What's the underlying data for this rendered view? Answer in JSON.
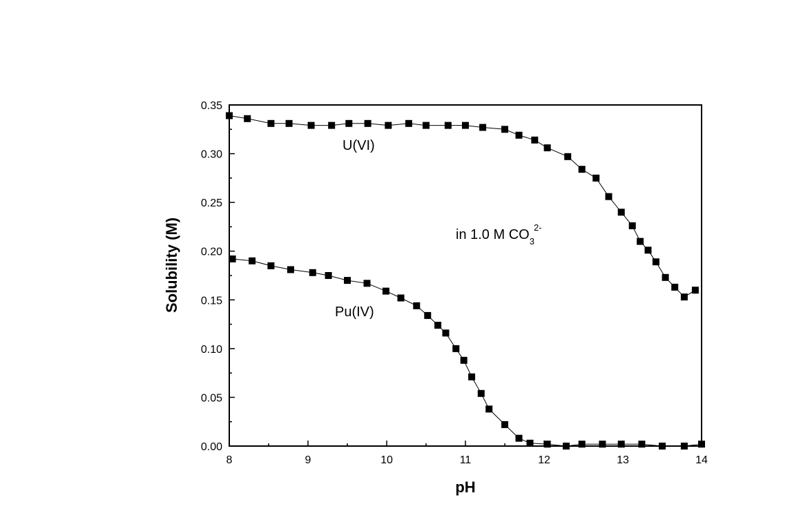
{
  "chart_data": {
    "type": "line",
    "title": "",
    "xlabel": "pH",
    "ylabel": "Solubility (M)",
    "xlim": [
      8,
      14
    ],
    "ylim": [
      0,
      0.35
    ],
    "grid": false,
    "x_ticks": [
      8,
      9,
      10,
      11,
      12,
      13,
      14
    ],
    "x_tick_labels": [
      "8",
      "9",
      "10",
      "11",
      "12",
      "13",
      "14"
    ],
    "y_ticks": [
      0,
      0.05,
      0.1,
      0.15,
      0.2,
      0.25,
      0.3,
      0.35
    ],
    "y_tick_labels": [
      "0.00",
      "0.05",
      "0.10",
      "0.15",
      "0.20",
      "0.25",
      "0.30",
      "0.35"
    ],
    "series": [
      {
        "name": "U(VI)",
        "marker": "square",
        "x": [
          8.0,
          8.23,
          8.53,
          8.76,
          9.04,
          9.3,
          9.52,
          9.76,
          10.02,
          10.28,
          10.5,
          10.78,
          11.0,
          11.22,
          11.5,
          11.68,
          11.88,
          12.04,
          12.3,
          12.48,
          12.66,
          12.82,
          12.98,
          13.12,
          13.22,
          13.32,
          13.42,
          13.54,
          13.66,
          13.78,
          13.92
        ],
        "values": [
          0.339,
          0.336,
          0.331,
          0.331,
          0.329,
          0.329,
          0.331,
          0.331,
          0.329,
          0.331,
          0.329,
          0.329,
          0.329,
          0.327,
          0.325,
          0.319,
          0.314,
          0.306,
          0.297,
          0.284,
          0.275,
          0.256,
          0.24,
          0.226,
          0.21,
          0.201,
          0.189,
          0.173,
          0.163,
          0.153,
          0.16
        ]
      },
      {
        "name": "Pu(IV)",
        "marker": "square",
        "x": [
          8.04,
          8.29,
          8.53,
          8.78,
          9.06,
          9.26,
          9.5,
          9.75,
          9.99,
          10.18,
          10.38,
          10.52,
          10.65,
          10.75,
          10.88,
          10.98,
          11.08,
          11.2,
          11.3,
          11.5,
          11.68,
          11.82,
          12.04,
          12.28,
          12.48,
          12.74,
          12.98,
          13.24,
          13.5,
          13.78,
          14.0
        ],
        "values": [
          0.192,
          0.19,
          0.185,
          0.181,
          0.178,
          0.175,
          0.17,
          0.167,
          0.159,
          0.152,
          0.144,
          0.134,
          0.124,
          0.116,
          0.1,
          0.088,
          0.071,
          0.054,
          0.038,
          0.022,
          0.008,
          0.003,
          0.002,
          0.0,
          0.002,
          0.002,
          0.002,
          0.002,
          0.0,
          0.0,
          0.002
        ]
      }
    ],
    "annotations": {
      "u_label": "U(VI)",
      "pu_label": "Pu(IV)",
      "medium_main": "in 1.0 M CO",
      "medium_subscript": "3",
      "medium_superscript": "2-"
    }
  }
}
